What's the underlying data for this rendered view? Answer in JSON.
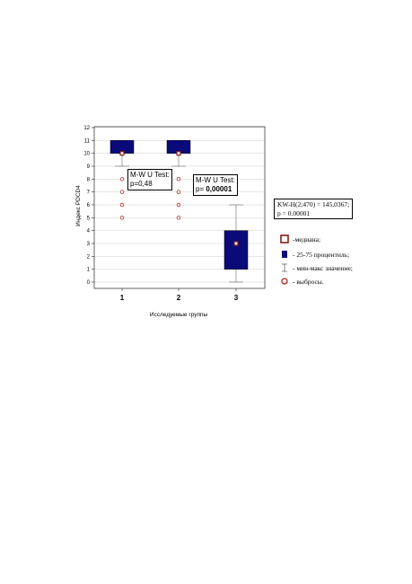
{
  "chart_data": {
    "type": "box",
    "ylabel": "Индекс PDCD4",
    "xlabel": "Исследуемые группы",
    "ylim": [
      0,
      12
    ],
    "yticks": [
      "0",
      "1",
      "2",
      "3",
      "4",
      "5",
      "6",
      "7",
      "8",
      "9",
      "10",
      "11",
      "12"
    ],
    "grid": true,
    "categories": [
      "1",
      "2",
      "3"
    ],
    "boxes": [
      {
        "category": "1",
        "min": 9,
        "q1": 10,
        "median": 10,
        "q3": 11,
        "max": 11,
        "outliers": [
          8,
          7,
          6,
          5
        ]
      },
      {
        "category": "2",
        "min": 9,
        "q1": 10,
        "median": 10,
        "q3": 11,
        "max": 11,
        "outliers": [
          8,
          7,
          6,
          5
        ]
      },
      {
        "category": "3",
        "min": 0,
        "q1": 1,
        "median": 3,
        "q3": 4,
        "max": 6,
        "outliers": []
      }
    ],
    "annotations": {
      "mw1": {
        "line1": "M-W U Test:",
        "line2": "p=0,48"
      },
      "mw2": {
        "line1": "M-W U Test:",
        "line2_prefix": "p= ",
        "line2_bold": "0,00001"
      },
      "kw": {
        "line1": "KW-H(2;470) = 145,0367;",
        "line2": "p = 0.00001"
      }
    },
    "legend": [
      {
        "symbol": "median-square",
        "label": "-медиана;"
      },
      {
        "symbol": "box-square",
        "label": "- 25-75 процентиль;"
      },
      {
        "symbol": "whisker",
        "label": "- мин-макс значение;"
      },
      {
        "symbol": "outlier-circle",
        "label": "- выбросы."
      }
    ],
    "legend_position": "right",
    "colors": {
      "box": "#0a0a7a",
      "median": "#8b1a1a",
      "outlier": "#b22222",
      "whisker": "#666666",
      "grid": "#cfcfcf"
    }
  }
}
